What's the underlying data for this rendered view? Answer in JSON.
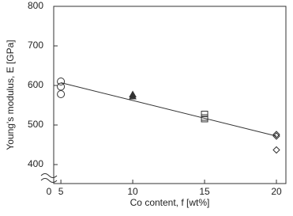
{
  "chart_data": {
    "type": "scatter",
    "x_label": "Co content, f [wt%]",
    "y_label": "Young's modulus, E [GPa]",
    "xlim": [
      4.5,
      20.66
    ],
    "xticks": [
      5,
      10,
      15,
      20
    ],
    "x_break_label": "0",
    "ylim": [
      352,
      800
    ],
    "yticks": [
      400,
      500,
      600,
      700,
      800
    ],
    "series": [
      {
        "marker": "circle",
        "x": [
          5,
          5,
          5
        ],
        "values": [
          610,
          597,
          578
        ]
      },
      {
        "marker": "triangle",
        "x": [
          10,
          10
        ],
        "values": [
          577,
          572
        ]
      },
      {
        "marker": "square",
        "x": [
          15,
          15,
          15
        ],
        "values": [
          528,
          519,
          515
        ]
      },
      {
        "marker": "diamond",
        "x": [
          20,
          20,
          20
        ],
        "values": [
          476,
          472,
          437
        ]
      }
    ],
    "fit_line": {
      "x": [
        5,
        20
      ],
      "values": [
        607,
        472
      ]
    },
    "color": "#333333"
  }
}
